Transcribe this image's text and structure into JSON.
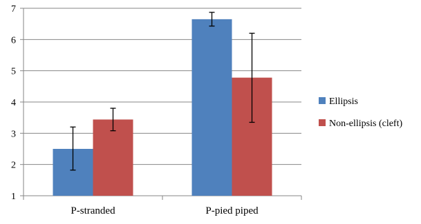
{
  "chart_data": {
    "type": "bar",
    "categories": [
      "P-stranded",
      "P-pied piped"
    ],
    "series": [
      {
        "name": "Ellipsis",
        "color": "#4f81bd",
        "values": [
          2.5,
          6.65
        ],
        "error_low": [
          1.82,
          6.43
        ],
        "error_high": [
          3.2,
          6.87
        ]
      },
      {
        "name": "Non-ellipsis (cleft)",
        "color": "#c0504d",
        "values": [
          3.44,
          4.78
        ],
        "error_low": [
          3.08,
          3.35
        ],
        "error_high": [
          3.8,
          6.2
        ]
      }
    ],
    "title": "",
    "xlabel": "",
    "ylabel": "",
    "ylim": [
      1,
      7
    ],
    "yticks": [
      1,
      2,
      3,
      4,
      5,
      6,
      7
    ],
    "grid": true,
    "legend_position": "right"
  }
}
